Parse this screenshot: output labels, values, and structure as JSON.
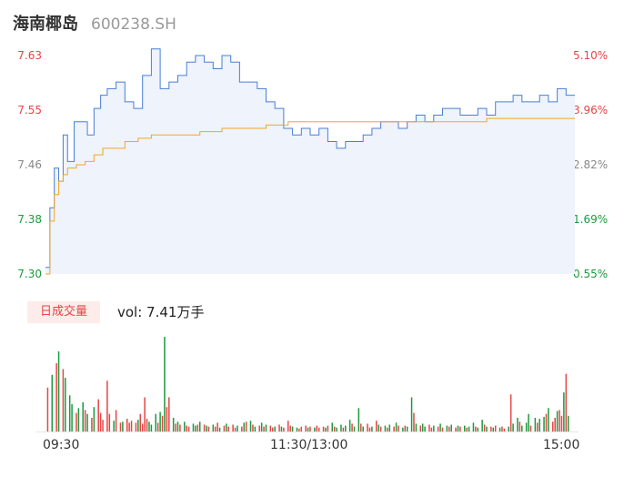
{
  "header": {
    "name": "海南椰岛",
    "code": "600238.SH"
  },
  "chart_data": {
    "type": "line",
    "price_axis": {
      "ticks": [
        "7.63",
        "7.55",
        "7.46",
        "7.38",
        "7.30"
      ],
      "tick_colors": [
        "#e64545",
        "#e64545",
        "#888888",
        "#1a9b3c",
        "#1a9b3c"
      ],
      "range": [
        7.3,
        7.63
      ]
    },
    "pct_axis": {
      "ticks": [
        "5.10%",
        "3.96%",
        "2.82%",
        "1.69%",
        "0.55%"
      ],
      "tick_colors": [
        "#e64545",
        "#e64545",
        "#888888",
        "#1a9b3c",
        "#1a9b3c"
      ]
    },
    "x_ticks": [
      "09:30",
      "11:30/13:00",
      "15:00"
    ],
    "series": [
      {
        "key": "price",
        "color": "#4a7fd6",
        "x": [
          0,
          2,
          4,
          6,
          8,
          10,
          13,
          16,
          19,
          22,
          25,
          28,
          32,
          36,
          40,
          44,
          48,
          52,
          56,
          60,
          64,
          68,
          72,
          76,
          80,
          84,
          88,
          92,
          96,
          100,
          104,
          108,
          112,
          116,
          120,
          124,
          128,
          132,
          136,
          140,
          144,
          148,
          152,
          156,
          160,
          164,
          168,
          172,
          176,
          180,
          184,
          188,
          192,
          196,
          200,
          204,
          208,
          212,
          216,
          220,
          224,
          228,
          232,
          236,
          240
        ],
        "values": [
          7.31,
          7.4,
          7.46,
          7.44,
          7.51,
          7.47,
          7.53,
          7.53,
          7.51,
          7.55,
          7.57,
          7.58,
          7.59,
          7.56,
          7.55,
          7.6,
          7.64,
          7.58,
          7.59,
          7.6,
          7.62,
          7.63,
          7.62,
          7.61,
          7.63,
          7.62,
          7.59,
          7.59,
          7.58,
          7.56,
          7.55,
          7.52,
          7.51,
          7.52,
          7.51,
          7.52,
          7.5,
          7.49,
          7.5,
          7.5,
          7.51,
          7.52,
          7.53,
          7.53,
          7.52,
          7.53,
          7.54,
          7.53,
          7.54,
          7.55,
          7.55,
          7.54,
          7.54,
          7.55,
          7.54,
          7.56,
          7.56,
          7.57,
          7.56,
          7.56,
          7.57,
          7.56,
          7.58,
          7.57,
          7.57
        ]
      },
      {
        "key": "avg",
        "color": "#f5a623",
        "x": [
          0,
          2,
          4,
          6,
          8,
          10,
          14,
          18,
          22,
          26,
          30,
          36,
          42,
          48,
          54,
          60,
          70,
          80,
          90,
          100,
          110,
          120,
          130,
          140,
          150,
          160,
          170,
          180,
          190,
          200,
          210,
          220,
          230,
          240
        ],
        "values": [
          7.3,
          7.38,
          7.42,
          7.44,
          7.45,
          7.46,
          7.465,
          7.47,
          7.48,
          7.49,
          7.49,
          7.5,
          7.505,
          7.51,
          7.51,
          7.51,
          7.515,
          7.52,
          7.52,
          7.525,
          7.53,
          7.53,
          7.53,
          7.53,
          7.53,
          7.53,
          7.53,
          7.53,
          7.53,
          7.535,
          7.535,
          7.535,
          7.535,
          7.535
        ]
      }
    ],
    "volume": {
      "label": "日成交量",
      "summary": "vol: 7.41万手",
      "bars": [
        {
          "x": 1,
          "v": 45,
          "up": true
        },
        {
          "x": 3,
          "v": 58,
          "up": false
        },
        {
          "x": 5,
          "v": 70,
          "up": true
        },
        {
          "x": 6,
          "v": 82,
          "up": false
        },
        {
          "x": 8,
          "v": 64,
          "up": true
        },
        {
          "x": 9,
          "v": 55,
          "up": false
        },
        {
          "x": 11,
          "v": 37,
          "up": false
        },
        {
          "x": 12,
          "v": 28,
          "up": false
        },
        {
          "x": 14,
          "v": 19,
          "up": true
        },
        {
          "x": 15,
          "v": 24,
          "up": false
        },
        {
          "x": 17,
          "v": 30,
          "up": false
        },
        {
          "x": 18,
          "v": 22,
          "up": true
        },
        {
          "x": 19,
          "v": 18,
          "up": false
        },
        {
          "x": 21,
          "v": 14,
          "up": true
        },
        {
          "x": 22,
          "v": 25,
          "up": false
        },
        {
          "x": 24,
          "v": 33,
          "up": true
        },
        {
          "x": 25,
          "v": 19,
          "up": true
        },
        {
          "x": 26,
          "v": 12,
          "up": true
        },
        {
          "x": 28,
          "v": 52,
          "up": true
        },
        {
          "x": 29,
          "v": 18,
          "up": true
        },
        {
          "x": 31,
          "v": 11,
          "up": false
        },
        {
          "x": 32,
          "v": 22,
          "up": true
        },
        {
          "x": 34,
          "v": 9,
          "up": true
        },
        {
          "x": 35,
          "v": 10,
          "up": false
        },
        {
          "x": 37,
          "v": 13,
          "up": true
        },
        {
          "x": 38,
          "v": 9,
          "up": true
        },
        {
          "x": 39,
          "v": 11,
          "up": true
        },
        {
          "x": 41,
          "v": 9,
          "up": true
        },
        {
          "x": 42,
          "v": 12,
          "up": false
        },
        {
          "x": 43,
          "v": 18,
          "up": true
        },
        {
          "x": 44,
          "v": 8,
          "up": true
        },
        {
          "x": 45,
          "v": 35,
          "up": true
        },
        {
          "x": 46,
          "v": 13,
          "up": true
        },
        {
          "x": 47,
          "v": 10,
          "up": false
        },
        {
          "x": 48,
          "v": 7,
          "up": false
        },
        {
          "x": 50,
          "v": 18,
          "up": false
        },
        {
          "x": 51,
          "v": 9,
          "up": true
        },
        {
          "x": 52,
          "v": 20,
          "up": false
        },
        {
          "x": 53,
          "v": 16,
          "up": true
        },
        {
          "x": 54,
          "v": 97,
          "up": false
        },
        {
          "x": 55,
          "v": 25,
          "up": true
        },
        {
          "x": 56,
          "v": 35,
          "up": true
        },
        {
          "x": 58,
          "v": 14,
          "up": false
        },
        {
          "x": 59,
          "v": 8,
          "up": true
        },
        {
          "x": 60,
          "v": 10,
          "up": false
        },
        {
          "x": 61,
          "v": 7,
          "up": true
        },
        {
          "x": 63,
          "v": 10,
          "up": false
        },
        {
          "x": 64,
          "v": 6,
          "up": true
        },
        {
          "x": 65,
          "v": 5,
          "up": true
        },
        {
          "x": 67,
          "v": 8,
          "up": false
        },
        {
          "x": 68,
          "v": 6,
          "up": false
        },
        {
          "x": 69,
          "v": 7,
          "up": true
        },
        {
          "x": 70,
          "v": 10,
          "up": false
        },
        {
          "x": 72,
          "v": 7,
          "up": true
        },
        {
          "x": 73,
          "v": 6,
          "up": false
        },
        {
          "x": 74,
          "v": 5,
          "up": true
        },
        {
          "x": 76,
          "v": 7,
          "up": false
        },
        {
          "x": 77,
          "v": 5,
          "up": true
        },
        {
          "x": 78,
          "v": 9,
          "up": true
        },
        {
          "x": 79,
          "v": 4,
          "up": false
        },
        {
          "x": 81,
          "v": 6,
          "up": true
        },
        {
          "x": 82,
          "v": 8,
          "up": false
        },
        {
          "x": 83,
          "v": 5,
          "up": true
        },
        {
          "x": 85,
          "v": 7,
          "up": true
        },
        {
          "x": 86,
          "v": 4,
          "up": true
        },
        {
          "x": 87,
          "v": 6,
          "up": false
        },
        {
          "x": 89,
          "v": 5,
          "up": true
        },
        {
          "x": 90,
          "v": 9,
          "up": false
        },
        {
          "x": 91,
          "v": 10,
          "up": true
        },
        {
          "x": 93,
          "v": 11,
          "up": false
        },
        {
          "x": 94,
          "v": 7,
          "up": true
        },
        {
          "x": 95,
          "v": 5,
          "up": false
        },
        {
          "x": 97,
          "v": 6,
          "up": true
        },
        {
          "x": 98,
          "v": 9,
          "up": false
        },
        {
          "x": 99,
          "v": 5,
          "up": true
        },
        {
          "x": 100,
          "v": 7,
          "up": false
        },
        {
          "x": 102,
          "v": 6,
          "up": true
        },
        {
          "x": 103,
          "v": 4,
          "up": true
        },
        {
          "x": 104,
          "v": 5,
          "up": false
        },
        {
          "x": 106,
          "v": 7,
          "up": true
        },
        {
          "x": 107,
          "v": 5,
          "up": false
        },
        {
          "x": 108,
          "v": 4,
          "up": true
        },
        {
          "x": 110,
          "v": 11,
          "up": true
        },
        {
          "x": 111,
          "v": 6,
          "up": true
        },
        {
          "x": 112,
          "v": 5,
          "up": false
        },
        {
          "x": 114,
          "v": 4,
          "up": false
        },
        {
          "x": 115,
          "v": 3,
          "up": true
        },
        {
          "x": 116,
          "v": 5,
          "up": true
        },
        {
          "x": 118,
          "v": 6,
          "up": true
        },
        {
          "x": 119,
          "v": 4,
          "up": false
        },
        {
          "x": 120,
          "v": 5,
          "up": true
        },
        {
          "x": 122,
          "v": 4,
          "up": false
        },
        {
          "x": 123,
          "v": 6,
          "up": true
        },
        {
          "x": 124,
          "v": 4,
          "up": true
        },
        {
          "x": 126,
          "v": 5,
          "up": true
        },
        {
          "x": 127,
          "v": 4,
          "up": false
        },
        {
          "x": 128,
          "v": 6,
          "up": true
        },
        {
          "x": 130,
          "v": 9,
          "up": false
        },
        {
          "x": 131,
          "v": 5,
          "up": true
        },
        {
          "x": 132,
          "v": 4,
          "up": false
        },
        {
          "x": 134,
          "v": 7,
          "up": false
        },
        {
          "x": 135,
          "v": 4,
          "up": true
        },
        {
          "x": 136,
          "v": 6,
          "up": false
        },
        {
          "x": 138,
          "v": 12,
          "up": false
        },
        {
          "x": 139,
          "v": 8,
          "up": true
        },
        {
          "x": 140,
          "v": 5,
          "up": false
        },
        {
          "x": 142,
          "v": 24,
          "up": false
        },
        {
          "x": 143,
          "v": 8,
          "up": true
        },
        {
          "x": 144,
          "v": 5,
          "up": false
        },
        {
          "x": 146,
          "v": 8,
          "up": true
        },
        {
          "x": 147,
          "v": 4,
          "up": true
        },
        {
          "x": 148,
          "v": 5,
          "up": false
        },
        {
          "x": 150,
          "v": 11,
          "up": true
        },
        {
          "x": 151,
          "v": 7,
          "up": false
        },
        {
          "x": 152,
          "v": 5,
          "up": true
        },
        {
          "x": 154,
          "v": 6,
          "up": false
        },
        {
          "x": 155,
          "v": 4,
          "up": true
        },
        {
          "x": 156,
          "v": 7,
          "up": false
        },
        {
          "x": 158,
          "v": 5,
          "up": true
        },
        {
          "x": 159,
          "v": 9,
          "up": false
        },
        {
          "x": 160,
          "v": 6,
          "up": true
        },
        {
          "x": 162,
          "v": 4,
          "up": false
        },
        {
          "x": 163,
          "v": 6,
          "up": true
        },
        {
          "x": 164,
          "v": 5,
          "up": false
        },
        {
          "x": 166,
          "v": 35,
          "up": false
        },
        {
          "x": 167,
          "v": 19,
          "up": true
        },
        {
          "x": 168,
          "v": 8,
          "up": false
        },
        {
          "x": 170,
          "v": 6,
          "up": true
        },
        {
          "x": 171,
          "v": 8,
          "up": false
        },
        {
          "x": 172,
          "v": 5,
          "up": false
        },
        {
          "x": 174,
          "v": 7,
          "up": true
        },
        {
          "x": 175,
          "v": 4,
          "up": true
        },
        {
          "x": 176,
          "v": 6,
          "up": false
        },
        {
          "x": 178,
          "v": 5,
          "up": true
        },
        {
          "x": 179,
          "v": 8,
          "up": false
        },
        {
          "x": 180,
          "v": 4,
          "up": true
        },
        {
          "x": 182,
          "v": 6,
          "up": false
        },
        {
          "x": 183,
          "v": 5,
          "up": true
        },
        {
          "x": 184,
          "v": 7,
          "up": false
        },
        {
          "x": 186,
          "v": 4,
          "up": true
        },
        {
          "x": 187,
          "v": 6,
          "up": false
        },
        {
          "x": 188,
          "v": 5,
          "up": true
        },
        {
          "x": 190,
          "v": 6,
          "up": false
        },
        {
          "x": 191,
          "v": 4,
          "up": true
        },
        {
          "x": 192,
          "v": 5,
          "up": false
        },
        {
          "x": 194,
          "v": 9,
          "up": false
        },
        {
          "x": 195,
          "v": 5,
          "up": true
        },
        {
          "x": 196,
          "v": 4,
          "up": false
        },
        {
          "x": 198,
          "v": 12,
          "up": false
        },
        {
          "x": 199,
          "v": 7,
          "up": true
        },
        {
          "x": 200,
          "v": 5,
          "up": false
        },
        {
          "x": 202,
          "v": 5,
          "up": true
        },
        {
          "x": 203,
          "v": 4,
          "up": false
        },
        {
          "x": 204,
          "v": 6,
          "up": true
        },
        {
          "x": 206,
          "v": 4,
          "up": false
        },
        {
          "x": 207,
          "v": 5,
          "up": true
        },
        {
          "x": 208,
          "v": 3,
          "up": true
        },
        {
          "x": 210,
          "v": 5,
          "up": false
        },
        {
          "x": 211,
          "v": 38,
          "up": true
        },
        {
          "x": 212,
          "v": 8,
          "up": false
        },
        {
          "x": 214,
          "v": 14,
          "up": false
        },
        {
          "x": 215,
          "v": 10,
          "up": true
        },
        {
          "x": 216,
          "v": 6,
          "up": false
        },
        {
          "x": 218,
          "v": 9,
          "up": false
        },
        {
          "x": 219,
          "v": 18,
          "up": false
        },
        {
          "x": 220,
          "v": 6,
          "up": true
        },
        {
          "x": 222,
          "v": 14,
          "up": false
        },
        {
          "x": 223,
          "v": 9,
          "up": true
        },
        {
          "x": 224,
          "v": 13,
          "up": false
        },
        {
          "x": 226,
          "v": 15,
          "up": false
        },
        {
          "x": 227,
          "v": 18,
          "up": true
        },
        {
          "x": 228,
          "v": 24,
          "up": false
        },
        {
          "x": 230,
          "v": 10,
          "up": true
        },
        {
          "x": 231,
          "v": 14,
          "up": true
        },
        {
          "x": 232,
          "v": 21,
          "up": false
        },
        {
          "x": 233,
          "v": 22,
          "up": true
        },
        {
          "x": 234,
          "v": 16,
          "up": true
        },
        {
          "x": 235,
          "v": 40,
          "up": false
        },
        {
          "x": 236,
          "v": 59,
          "up": true
        },
        {
          "x": 237,
          "v": 16,
          "up": false
        }
      ]
    }
  }
}
